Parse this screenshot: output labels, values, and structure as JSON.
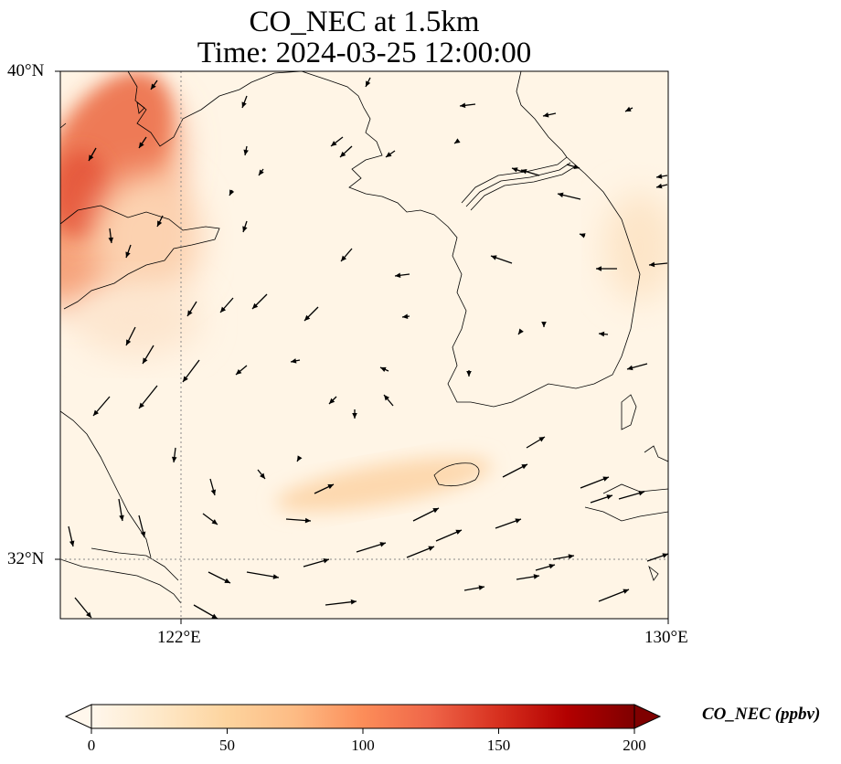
{
  "title_line1": "CO_NEC at 1.5km",
  "title_line2": "Time: 2024-03-25 12:00:00",
  "axes": {
    "lat_ticks": [
      {
        "value": 40,
        "label": "40°N"
      },
      {
        "value": 32,
        "label": "32°N"
      }
    ],
    "lon_ticks": [
      {
        "value": 122,
        "label": "122°E"
      },
      {
        "value": 130,
        "label": "130°E"
      }
    ],
    "lon_range": [
      120,
      130
    ],
    "lat_range": [
      31,
      40
    ],
    "gridlines": "dotted"
  },
  "colorbar": {
    "label": "CO_NEC (ppbv)",
    "colormap": "OrRd",
    "range": [
      0,
      200
    ],
    "ticks": [
      0,
      50,
      100,
      150,
      200
    ],
    "extend": "both",
    "colors": [
      "#fff7ec",
      "#fee8c8",
      "#fdd49e",
      "#fdbb84",
      "#fc8d59",
      "#ef6548",
      "#d7301f",
      "#b30000",
      "#7f0000"
    ]
  },
  "field_regions": [
    {
      "lon": [
        120.0,
        122.0
      ],
      "lat": [
        37.5,
        39.5
      ],
      "value": 115
    },
    {
      "lon": [
        120.0,
        121.5
      ],
      "lat": [
        36.2,
        38.4
      ],
      "value": 100
    },
    {
      "lon": [
        120.5,
        122.6
      ],
      "lat": [
        35.0,
        37.0
      ],
      "value": 75
    },
    {
      "lon": [
        124.5,
        126.5
      ],
      "lat": [
        32.6,
        33.6
      ],
      "value": 25
    }
  ]
}
